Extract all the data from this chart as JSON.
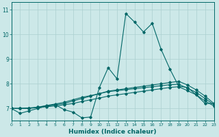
{
  "xlabel": "Humidex (Indice chaleur)",
  "xlim": [
    0,
    23
  ],
  "ylim": [
    6.5,
    11.3
  ],
  "yticks": [
    7,
    8,
    9,
    10,
    11
  ],
  "xticks": [
    0,
    1,
    2,
    3,
    4,
    5,
    6,
    7,
    8,
    9,
    10,
    11,
    12,
    13,
    14,
    15,
    16,
    17,
    18,
    19,
    20,
    21,
    22,
    23
  ],
  "bg_color": "#cce8e8",
  "grid_color": "#aacfcf",
  "line_color": "#006666",
  "lines": [
    {
      "x": [
        0,
        1,
        2,
        3,
        4,
        5,
        6,
        7,
        8,
        9,
        10,
        11,
        12,
        13,
        14,
        15,
        16,
        17,
        18,
        19,
        20,
        21,
        22,
        23
      ],
      "y": [
        7.0,
        6.8,
        6.9,
        7.0,
        7.1,
        7.15,
        6.95,
        6.85,
        6.62,
        6.65,
        7.85,
        8.65,
        8.2,
        10.85,
        10.5,
        10.1,
        10.45,
        9.4,
        8.6,
        7.9,
        7.85,
        7.55,
        7.2,
        7.2
      ]
    },
    {
      "x": [
        0,
        1,
        2,
        3,
        4,
        5,
        6,
        7,
        8,
        9,
        10,
        11,
        12,
        13,
        14,
        15,
        16,
        17,
        18,
        19,
        20,
        21,
        22,
        23
      ],
      "y": [
        7.0,
        7.0,
        7.0,
        7.05,
        7.1,
        7.15,
        7.2,
        7.3,
        7.4,
        7.5,
        7.6,
        7.7,
        7.75,
        7.8,
        7.85,
        7.9,
        7.95,
        8.0,
        8.05,
        8.1,
        7.95,
        7.75,
        7.5,
        7.2
      ]
    },
    {
      "x": [
        0,
        1,
        2,
        3,
        4,
        5,
        6,
        7,
        8,
        9,
        10,
        11,
        12,
        13,
        14,
        15,
        16,
        17,
        18,
        19,
        20,
        21,
        22,
        23
      ],
      "y": [
        7.0,
        7.0,
        7.02,
        7.05,
        7.12,
        7.18,
        7.25,
        7.35,
        7.45,
        7.52,
        7.6,
        7.68,
        7.72,
        7.76,
        7.8,
        7.84,
        7.88,
        7.92,
        7.96,
        7.98,
        7.82,
        7.65,
        7.4,
        7.15
      ]
    },
    {
      "x": [
        0,
        1,
        2,
        3,
        4,
        5,
        6,
        7,
        8,
        9,
        10,
        11,
        12,
        13,
        14,
        15,
        16,
        17,
        18,
        19,
        20,
        21,
        22,
        23
      ],
      "y": [
        7.0,
        7.0,
        7.01,
        7.03,
        7.07,
        7.1,
        7.15,
        7.2,
        7.28,
        7.35,
        7.42,
        7.5,
        7.55,
        7.6,
        7.65,
        7.7,
        7.75,
        7.8,
        7.85,
        7.88,
        7.72,
        7.55,
        7.3,
        7.1
      ]
    }
  ]
}
